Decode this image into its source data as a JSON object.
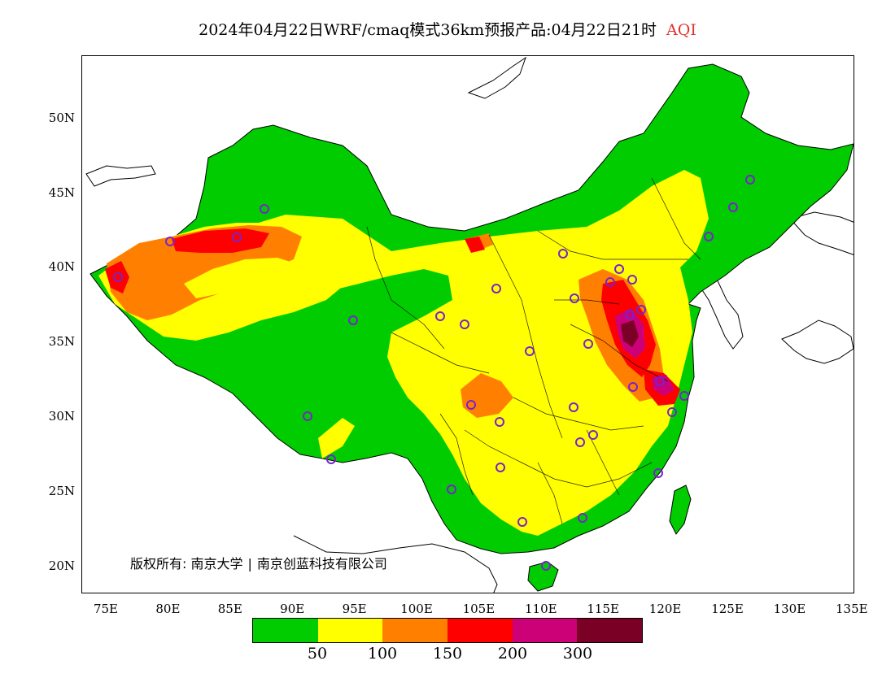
{
  "title": {
    "product": "2024年04月22日WRF/cmaq模式36km预报产品:04月22日21时",
    "variable": "AQI"
  },
  "map": {
    "y_axis_labels": [
      "50N",
      "45N",
      "40N",
      "35N",
      "30N",
      "25N",
      "20N"
    ],
    "x_axis_labels": [
      "75E",
      "80E",
      "85E",
      "90E",
      "95E",
      "100E",
      "105E",
      "110E",
      "115E",
      "120E",
      "125E",
      "130E",
      "135E"
    ],
    "aqi_colors": {
      "good": "#00cc00",
      "moderate": "#ffff00",
      "unhealthy_sensitive": "#ff8000",
      "unhealthy": "#ff0000",
      "very_unhealthy": "#cc0077",
      "hazardous": "#7a0026"
    },
    "station_marker_color": "#7a22cc",
    "boundary_color": "#000000"
  },
  "copyright": {
    "prefix": "版权所有:",
    "org1": "南京大学",
    "org2": "南京创蓝科技有限公司"
  },
  "legend": {
    "colors": [
      "#00cc00",
      "#ffff00",
      "#ff8000",
      "#ff0000",
      "#cc0077",
      "#7a0026"
    ],
    "labels": [
      "50",
      "100",
      "150",
      "200",
      "300"
    ]
  }
}
